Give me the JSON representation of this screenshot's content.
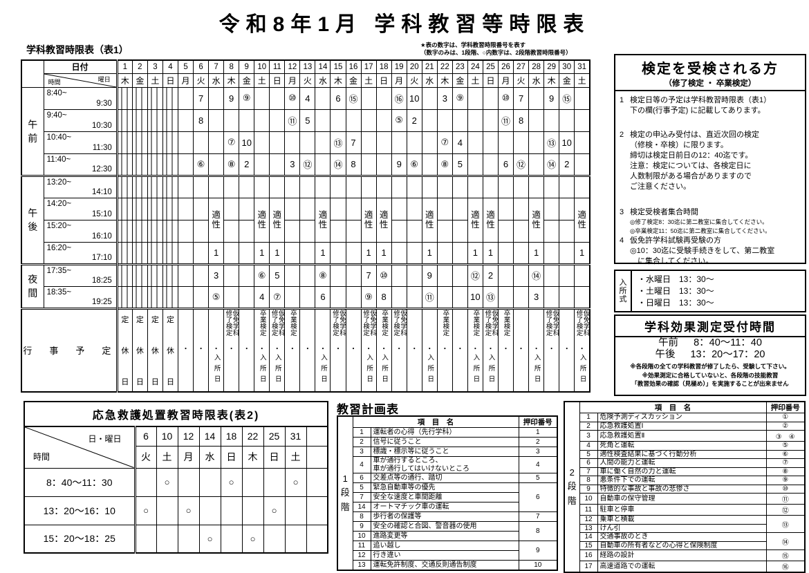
{
  "title": "令和8年1月 学科教習等時限表",
  "note1": "★表の数字は、学科教習時限番号を表す",
  "note2": "（数字のみは、1段階、○内数字は、2段階教習時限番号）",
  "table1": {
    "caption": "学科教習時限表（表1）",
    "header": {
      "date": "日付",
      "weekday": "曜日",
      "time": "時間"
    },
    "days": [
      "1",
      "2",
      "3",
      "4",
      "5",
      "6",
      "7",
      "8",
      "9",
      "10",
      "11",
      "12",
      "13",
      "14",
      "15",
      "16",
      "17",
      "18",
      "19",
      "20",
      "21",
      "22",
      "23",
      "24",
      "25",
      "26",
      "27",
      "28",
      "29",
      "30",
      "31"
    ],
    "weekdays": [
      "木",
      "金",
      "土",
      "日",
      "月",
      "火",
      "水",
      "木",
      "金",
      "土",
      "日",
      "月",
      "火",
      "水",
      "木",
      "金",
      "土",
      "日",
      "月",
      "火",
      "水",
      "木",
      "金",
      "土",
      "日",
      "月",
      "火",
      "水",
      "木",
      "金",
      "土"
    ],
    "closed_days": [
      1,
      2,
      3,
      4
    ],
    "aptitude": {
      "label": "適性",
      "days": [
        7,
        10,
        11,
        14,
        17,
        18,
        21,
        24,
        25,
        28,
        31
      ]
    },
    "rows": [
      {
        "section": "午前",
        "section_rowspan": 4,
        "time_start": "8:40~",
        "time_end": "9:30",
        "cells": {
          "6": "7",
          "8": "9",
          "9": "⑨",
          "12": "⑩",
          "13": "4",
          "15": "6",
          "16": "⑮",
          "19": "⑯",
          "20": "10",
          "22": "3",
          "23": "⑨",
          "26": "⑩",
          "27": "7",
          "29": "9",
          "30": "⑮"
        }
      },
      {
        "time_start": "9:40~",
        "time_end": "10:30",
        "cells": {
          "6": "8",
          "12": "⑪",
          "13": "5",
          "19": "⑤",
          "20": "2",
          "26": "⑪",
          "27": "8"
        }
      },
      {
        "time_start": "10:40~",
        "time_end": "11:30",
        "cells": {
          "8": "⑦",
          "9": "10",
          "15": "⑬",
          "16": "7",
          "22": "⑦",
          "23": "4",
          "29": "⑬",
          "30": "10"
        }
      },
      {
        "time_start": "11:40~",
        "time_end": "12:30",
        "cells": {
          "6": "⑥",
          "8": "⑧",
          "9": "2",
          "12": "3",
          "13": "⑫",
          "15": "⑭",
          "16": "8",
          "19": "9",
          "20": "⑥",
          "22": "⑧",
          "23": "5",
          "26": "6",
          "27": "⑫",
          "29": "⑭",
          "30": "2"
        }
      },
      {
        "section": "午後",
        "section_rowspan": 4,
        "time_start": "13:20~",
        "time_end": "14:10",
        "cells": {}
      },
      {
        "time_start": "14:20~",
        "time_end": "15:10",
        "aptitude": "start",
        "cells": {}
      },
      {
        "time_start": "15:20~",
        "time_end": "16:10",
        "aptitude": "skip",
        "cells": {}
      },
      {
        "time_start": "16:20~",
        "time_end": "17:10",
        "cells": {
          "7": "1",
          "10": "1",
          "11": "1",
          "14": "1",
          "17": "1",
          "18": "1",
          "21": "1",
          "24": "1",
          "25": "1",
          "28": "1",
          "31": "1"
        }
      },
      {
        "section": "夜間",
        "section_rowspan": 2,
        "time_start": "17:35~",
        "time_end": "18:25",
        "cells": {
          "7": "3",
          "10": "⑥",
          "11": "5",
          "14": "⑧",
          "17": "7",
          "18": "⑩",
          "21": "9",
          "24": "⑫",
          "25": "2",
          "28": "⑭"
        }
      },
      {
        "time_start": "18:35~",
        "time_end": "19:25",
        "cells": {
          "7": "⑤",
          "10": "4",
          "11": "⑦",
          "14": "6",
          "17": "⑨",
          "18": "8",
          "21": "⑪",
          "24": "10",
          "25": "⑬",
          "28": "3"
        }
      }
    ],
    "events": {
      "label": "行　事　予　定",
      "closed_text": "定休日",
      "dot": "・",
      "entry_text": "入所日",
      "shuken_cols": [
        "修了検定",
        "仮免学科"
      ],
      "sotsuken_cols": [
        "卒業検定"
      ],
      "shuken_days": [
        8,
        11,
        15,
        17,
        19,
        25,
        29,
        31
      ],
      "sotsuken_days": [
        10,
        12,
        18,
        22,
        24,
        26
      ],
      "entry_days": [
        7,
        10,
        11,
        14,
        17,
        18,
        21,
        24,
        25,
        28,
        31
      ]
    }
  },
  "kentei_box": {
    "title": "検定を受検される方",
    "subtitle": "（修了検定 ・ 卒業検定）",
    "items": [
      {
        "num": "1",
        "lines": [
          "検定日等の予定は学科教習時限表（表1）",
          "下の欄(行事予定) に記載してあります。"
        ],
        "small": [],
        "gap": 20
      },
      {
        "num": "2",
        "lines": [
          "検定の申込み受付は、直近次回の検定",
          "（修検・卒検）に限ります。",
          "締切は検定日前日の12：40迄です。",
          "注意：検定については、各検定日に",
          "人数制限がある場合がありますので",
          "ご注意ください。"
        ],
        "small": [],
        "gap": 22
      },
      {
        "num": "3",
        "lines": [
          "検定受検者集合時間"
        ],
        "small": [
          "◎修了検定8：30迄に第二教室に集合してください。",
          "◎卒業検定11：50迄に第二教室に集合してください。"
        ],
        "gap": 0
      },
      {
        "num": "4",
        "lines": [
          "仮免許学科試験再受験の方",
          "◎10：30迄に受験手続きをして、第二教室",
          "　に集合してください。"
        ],
        "small": [],
        "gap": 0
      }
    ]
  },
  "nyusho_box": {
    "label": "入所式",
    "items": [
      "・水曜日　13：30～",
      "・土曜日　13：30～",
      "・日曜日　13：30～"
    ]
  },
  "kouka_box": {
    "title": "学科効果測定受付時間",
    "am_label": "午前",
    "am_time": "8：40～11：40",
    "pm_label": "午後",
    "pm_time": "13：20～17：20",
    "notes": [
      "※各段階の全ての学科教習が修了したら、受験して下さい。",
      "※効果測定に合格していないと、各段階の技能教習",
      "「教習効果の確認（見極め）」を実施することが出来ません"
    ]
  },
  "table2": {
    "title": "応急救護処置教習時限表(表2)",
    "diag_top": "日・曜日",
    "diag_bottom": "時間",
    "days": [
      "6",
      "10",
      "12",
      "14",
      "18",
      "22",
      "25",
      "31",
      ""
    ],
    "weekdays": [
      "火",
      "土",
      "月",
      "水",
      "日",
      "木",
      "日",
      "土",
      ""
    ],
    "mark": "○",
    "rows": [
      {
        "time": "8：40～11：30",
        "marks": [
          false,
          true,
          false,
          false,
          true,
          false,
          false,
          true,
          false
        ]
      },
      {
        "time": "13：20～16：10",
        "marks": [
          true,
          false,
          true,
          false,
          false,
          false,
          true,
          false,
          false
        ]
      },
      {
        "time": "15：20～18：25",
        "marks": [
          false,
          false,
          false,
          true,
          false,
          true,
          false,
          false,
          false
        ]
      }
    ]
  },
  "plan_title": "教習計画表",
  "stage1": {
    "label": "1段階",
    "header_name": "項　目　名",
    "header_stamp": "押印番号",
    "groups": [
      {
        "items": [
          {
            "num": "1",
            "name": "運転者の心得（先行学科）"
          }
        ],
        "stamp": "1"
      },
      {
        "items": [
          {
            "num": "2",
            "name": "信号に従うこと"
          }
        ],
        "stamp": "2"
      },
      {
        "items": [
          {
            "num": "3",
            "name": "標識・標示等に従うこと"
          }
        ],
        "stamp": "3"
      },
      {
        "items": [
          {
            "num": "4",
            "name": "車が通行するところ、\n車が通行してはいけないところ"
          }
        ],
        "stamp": "4"
      },
      {
        "items": [
          {
            "num": "6",
            "name": "交差点等の通行、踏切"
          }
        ],
        "stamp": "5"
      },
      {
        "items": [
          {
            "num": "5",
            "name": "緊急自動車等の優先"
          },
          {
            "num": "7",
            "name": "安全な速度と車間距離"
          },
          {
            "num": "14",
            "name": "オートマチック車の運転"
          }
        ],
        "stamp": "6"
      },
      {
        "items": [
          {
            "num": "8",
            "name": "歩行者の保護等"
          }
        ],
        "stamp": "7"
      },
      {
        "items": [
          {
            "num": "9",
            "name": "安全の確認と合図、警音器の使用"
          },
          {
            "num": "10",
            "name": "進路変更等"
          }
        ],
        "stamp": "8"
      },
      {
        "items": [
          {
            "num": "11",
            "name": "追い越し"
          },
          {
            "num": "12",
            "name": "行き違い"
          }
        ],
        "stamp": "9"
      },
      {
        "items": [
          {
            "num": "13",
            "name": "運転免許制度、交通反則通告制度"
          }
        ],
        "stamp": "10"
      }
    ]
  },
  "stage2": {
    "label": "2段階",
    "header_name": "項　目　名",
    "header_stamp": "押印番号",
    "groups": [
      {
        "items": [
          {
            "num": "1",
            "name": "危険予測ディスカッション"
          }
        ],
        "stamp": "①"
      },
      {
        "items": [
          {
            "num": "2",
            "name": "応急救護処置Ⅰ"
          }
        ],
        "stamp": "②"
      },
      {
        "items": [
          {
            "num": "3",
            "name": "応急救護処置Ⅱ"
          }
        ],
        "stamp": "③　④"
      },
      {
        "items": [
          {
            "num": "4",
            "name": "死角と運転"
          }
        ],
        "stamp": "⑤"
      },
      {
        "items": [
          {
            "num": "5",
            "name": "適性検査結果に基づく行動分析"
          }
        ],
        "stamp": "⑥"
      },
      {
        "items": [
          {
            "num": "6",
            "name": "人間の能力と運転"
          }
        ],
        "stamp": "⑦"
      },
      {
        "items": [
          {
            "num": "7",
            "name": "車に働く自然の力と運転"
          }
        ],
        "stamp": "⑧"
      },
      {
        "items": [
          {
            "num": "8",
            "name": "悪条件下での運転"
          }
        ],
        "stamp": "⑨"
      },
      {
        "items": [
          {
            "num": "9",
            "name": "特徴的な事故と事故の悲惨さ"
          }
        ],
        "stamp": "⑩"
      },
      {
        "items": [
          {
            "num": "10",
            "name": "自動車の保守管理"
          }
        ],
        "stamp": "⑪"
      },
      {
        "items": [
          {
            "num": "11",
            "name": "駐車と停車"
          }
        ],
        "stamp": "⑫"
      },
      {
        "items": [
          {
            "num": "12",
            "name": "乗車と積載"
          },
          {
            "num": "13",
            "name": "けん引"
          }
        ],
        "stamp": "⑬"
      },
      {
        "items": [
          {
            "num": "14",
            "name": "交通事故のとき"
          },
          {
            "num": "15",
            "name": "自動車の所有者などの心得と保険制度"
          }
        ],
        "stamp": "⑭"
      },
      {
        "items": [
          {
            "num": "16",
            "name": "経路の設計"
          }
        ],
        "stamp": "⑮"
      },
      {
        "items": [
          {
            "num": "17",
            "name": "高速道路での運転"
          }
        ],
        "stamp": "⑯"
      }
    ]
  }
}
